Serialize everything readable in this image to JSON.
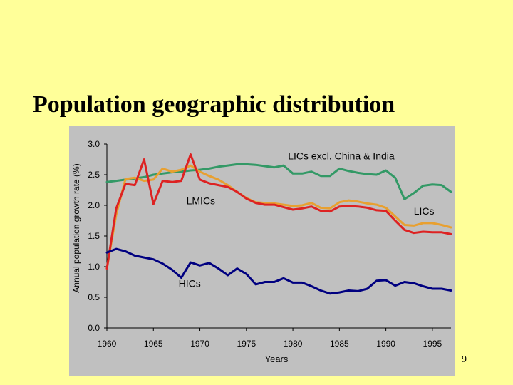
{
  "slide": {
    "title": "Population geographic distribution",
    "page_number": "9"
  },
  "colors": {
    "background": "#ffff99",
    "plot_area": "#c0c0c0",
    "LIC_excl": "#339966",
    "LMIC": "#e8a030",
    "LIC": "#dd2222",
    "HIC": "#000080"
  },
  "chart_data": {
    "type": "line",
    "title": "",
    "xlabel": "Years",
    "ylabel": "Annual population growth rate (%)",
    "xlim": [
      1960,
      1997
    ],
    "ylim": [
      0,
      3.0
    ],
    "x_ticks": [
      "1960",
      "1965",
      "1970",
      "1975",
      "1980",
      "1985",
      "1990",
      "1995"
    ],
    "y_ticks": [
      "3.0",
      "2.5",
      "2.0",
      "1.5",
      "1.0",
      "0.5",
      "0.0"
    ],
    "grid": false,
    "x": [
      1960,
      1961,
      1962,
      1963,
      1964,
      1965,
      1966,
      1967,
      1968,
      1969,
      1970,
      1971,
      1972,
      1973,
      1974,
      1975,
      1976,
      1977,
      1978,
      1979,
      1980,
      1981,
      1982,
      1983,
      1984,
      1985,
      1986,
      1987,
      1988,
      1989,
      1990,
      1991,
      1992,
      1993,
      1994,
      1995,
      1996,
      1997
    ],
    "series": [
      {
        "name": "LICs excl. China & India",
        "color_key": "LIC_excl",
        "values": [
          2.38,
          2.4,
          2.42,
          2.44,
          2.46,
          2.5,
          2.52,
          2.54,
          2.55,
          2.57,
          2.58,
          2.6,
          2.63,
          2.65,
          2.67,
          2.67,
          2.66,
          2.64,
          2.62,
          2.65,
          2.52,
          2.52,
          2.55,
          2.48,
          2.48,
          2.6,
          2.56,
          2.53,
          2.51,
          2.5,
          2.57,
          2.45,
          2.1,
          2.2,
          2.32,
          2.34,
          2.33,
          2.22
        ]
      },
      {
        "name": "LMICs",
        "color_key": "LMIC",
        "values": [
          0.97,
          1.85,
          2.43,
          2.45,
          2.4,
          2.42,
          2.6,
          2.55,
          2.58,
          2.65,
          2.55,
          2.48,
          2.42,
          2.33,
          2.22,
          2.12,
          2.05,
          2.04,
          2.03,
          2.01,
          1.99,
          2.0,
          2.04,
          1.96,
          1.95,
          2.05,
          2.08,
          2.06,
          2.03,
          2.01,
          1.96,
          1.82,
          1.68,
          1.67,
          1.71,
          1.71,
          1.68,
          1.64
        ]
      },
      {
        "name": "LICs",
        "color_key": "LIC",
        "values": [
          0.97,
          1.95,
          2.35,
          2.33,
          2.75,
          2.02,
          2.4,
          2.38,
          2.4,
          2.83,
          2.42,
          2.36,
          2.33,
          2.3,
          2.22,
          2.11,
          2.04,
          2.01,
          2.01,
          1.97,
          1.93,
          1.95,
          1.98,
          1.91,
          1.9,
          1.98,
          1.99,
          1.98,
          1.96,
          1.92,
          1.91,
          1.75,
          1.6,
          1.55,
          1.57,
          1.56,
          1.56,
          1.53
        ]
      },
      {
        "name": "HICs",
        "color_key": "HIC",
        "values": [
          1.23,
          1.29,
          1.25,
          1.18,
          1.15,
          1.12,
          1.05,
          0.95,
          0.82,
          1.07,
          1.02,
          1.06,
          0.97,
          0.86,
          0.97,
          0.88,
          0.71,
          0.75,
          0.75,
          0.81,
          0.74,
          0.74,
          0.68,
          0.61,
          0.56,
          0.58,
          0.61,
          0.6,
          0.64,
          0.77,
          0.78,
          0.69,
          0.75,
          0.73,
          0.68,
          0.64,
          0.64,
          0.61
        ]
      }
    ],
    "annotations": [
      {
        "text": "LICs excl. China & India",
        "series": "LICs excl. China & India",
        "x": 1985.2,
        "y": 2.75
      },
      {
        "text": "LMICs",
        "series": "LMICs",
        "x": 1970.1,
        "y": 2.02
      },
      {
        "text": "LICs",
        "series": "LICs",
        "x": 1994.1,
        "y": 1.85
      },
      {
        "text": "HICs",
        "series": "HICs",
        "x": 1968.9,
        "y": 0.67
      }
    ]
  }
}
